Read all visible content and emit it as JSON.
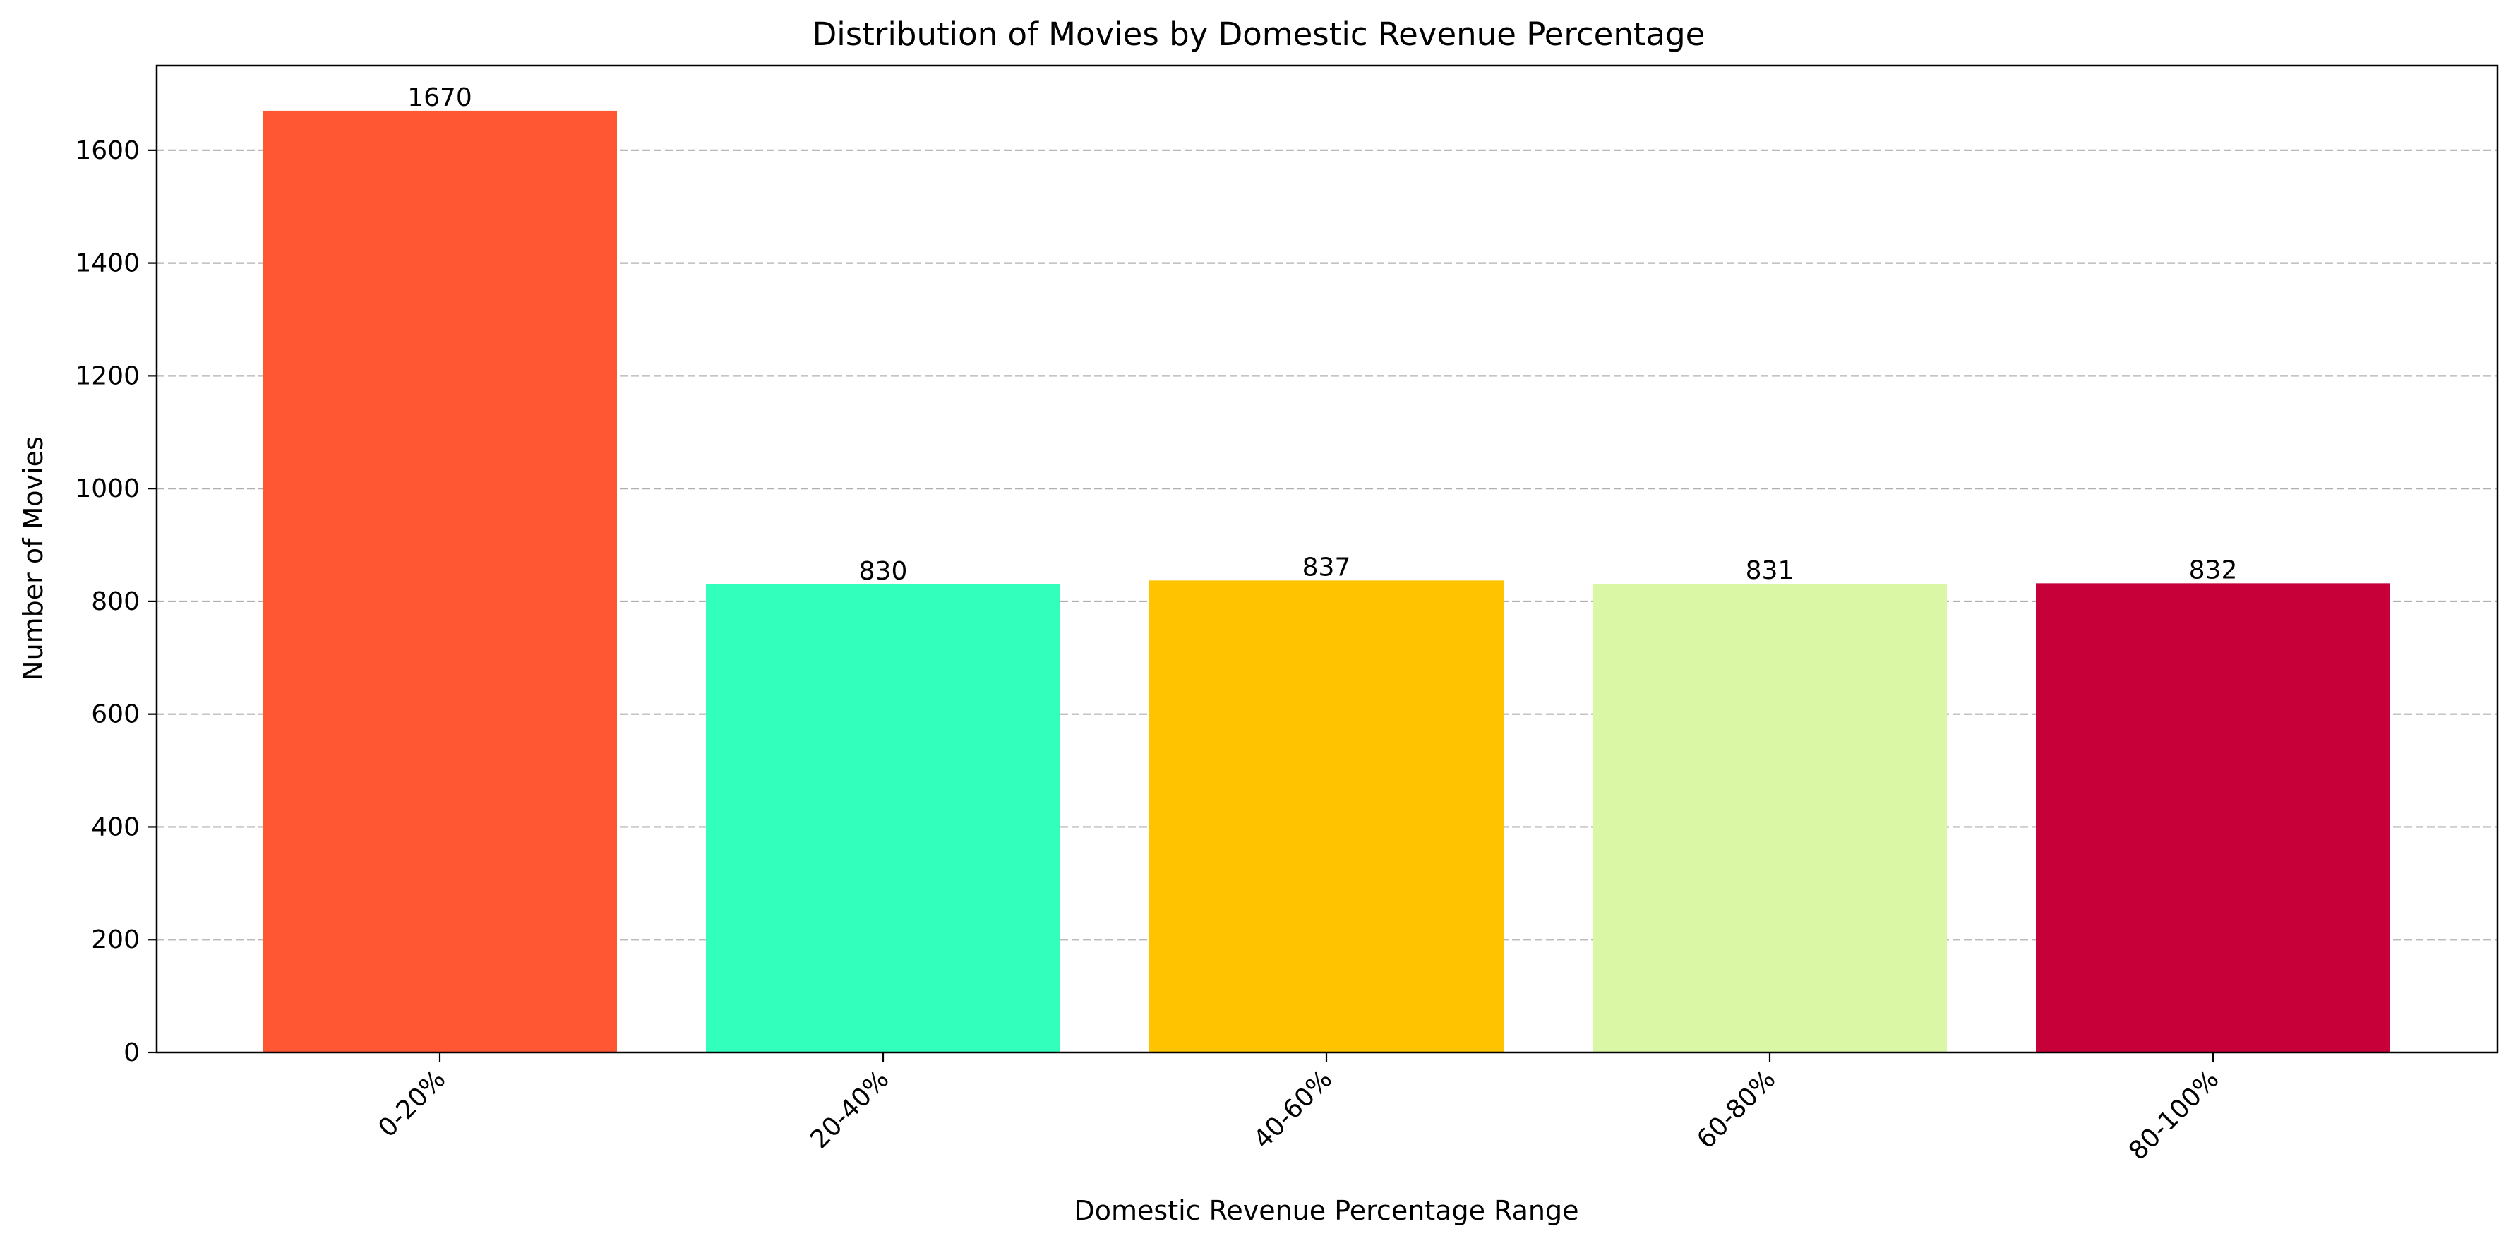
{
  "chart_data": {
    "type": "bar",
    "title": "Distribution of Movies by Domestic Revenue Percentage",
    "xlabel": "Domestic Revenue Percentage Range",
    "ylabel": "Number of Movies",
    "categories": [
      "0-20%",
      "20-40%",
      "40-60%",
      "60-80%",
      "80-100%"
    ],
    "values": [
      1670,
      830,
      837,
      831,
      832
    ],
    "colors": [
      "#FF5733",
      "#33FFBD",
      "#FFC300",
      "#DAF7A6",
      "#C70039"
    ],
    "ylim": [
      0,
      1750
    ],
    "yticks": [
      0,
      200,
      400,
      600,
      800,
      1000,
      1200,
      1400,
      1600
    ],
    "grid": "y-dashed",
    "tick_rotation": 45,
    "data_labels": true
  }
}
